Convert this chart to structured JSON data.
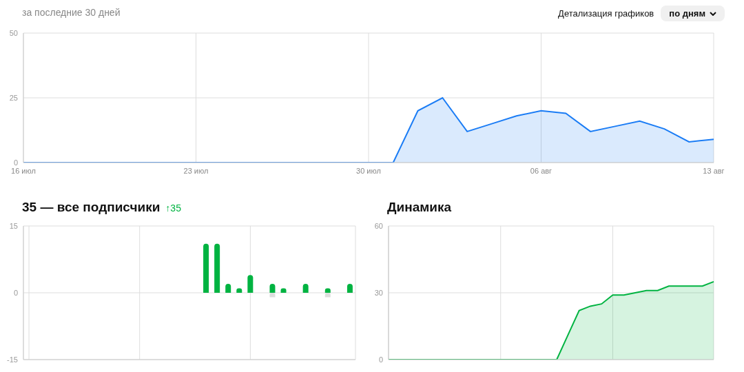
{
  "chart_data": [
    {
      "type": "area",
      "subtitle": "за последние 30 дней",
      "annotations": [
        "Детализация графиков",
        "по дням"
      ],
      "categories": [
        "16 июл",
        null,
        null,
        null,
        null,
        null,
        null,
        "23 июл",
        null,
        null,
        null,
        null,
        null,
        null,
        "30 июл",
        null,
        null,
        null,
        null,
        null,
        null,
        "06 авг",
        null,
        null,
        null,
        null,
        null,
        null,
        "13 авг"
      ],
      "series": [
        {
          "color": "#1a7cf5",
          "values": [
            0,
            0,
            0,
            0,
            0,
            0,
            0,
            0,
            0,
            0,
            0,
            0,
            0,
            0,
            0,
            0,
            20,
            25,
            12,
            15,
            18,
            20,
            19,
            12,
            14,
            16,
            13,
            8,
            9
          ]
        }
      ],
      "ylim": [
        0,
        50
      ],
      "yticks": [
        0,
        25,
        50
      ],
      "grid": true
    },
    {
      "type": "bar",
      "title": "35 — все подписчики",
      "subtitle": "↑35",
      "categories": [
        null,
        null,
        null,
        null,
        null,
        null,
        null,
        null,
        null,
        null,
        null,
        null,
        null,
        null,
        null,
        null,
        null,
        null,
        null,
        null,
        null,
        null,
        null,
        null,
        null,
        null,
        null,
        null,
        null,
        null
      ],
      "stacked": true,
      "series": [
        {
          "color": "#00b341",
          "values": [
            0,
            0,
            0,
            0,
            0,
            0,
            0,
            0,
            0,
            0,
            0,
            0,
            0,
            0,
            0,
            0,
            11,
            11,
            2,
            1,
            4,
            0,
            2,
            1,
            0,
            2,
            0,
            1,
            0,
            2
          ]
        },
        {
          "color": "#dddddd",
          "values": [
            0,
            0,
            0,
            0,
            0,
            0,
            0,
            0,
            0,
            0,
            0,
            0,
            0,
            0,
            0,
            0,
            0,
            0,
            0,
            0,
            0,
            0,
            -1,
            0,
            0,
            0,
            0,
            -1,
            0,
            0
          ]
        }
      ],
      "ylim": [
        -15,
        15
      ],
      "yticks": [
        -15,
        0,
        15
      ],
      "grid": true
    },
    {
      "type": "area",
      "title": "Динамика",
      "categories": [
        null,
        null,
        null,
        null,
        null,
        null,
        null,
        null,
        null,
        null,
        null,
        null,
        null,
        null,
        null,
        null,
        null,
        null,
        null,
        null,
        null,
        null,
        null,
        null,
        null,
        null,
        null,
        null,
        null,
        null
      ],
      "series": [
        {
          "color": "#00b341",
          "values": [
            0,
            0,
            0,
            0,
            0,
            0,
            0,
            0,
            0,
            0,
            0,
            0,
            0,
            0,
            0,
            0,
            11,
            22,
            24,
            25,
            29,
            29,
            30,
            31,
            31,
            33,
            33,
            33,
            33,
            35
          ]
        }
      ],
      "ylim": [
        0,
        60
      ],
      "yticks": [
        0,
        30,
        60
      ],
      "grid": true
    }
  ]
}
